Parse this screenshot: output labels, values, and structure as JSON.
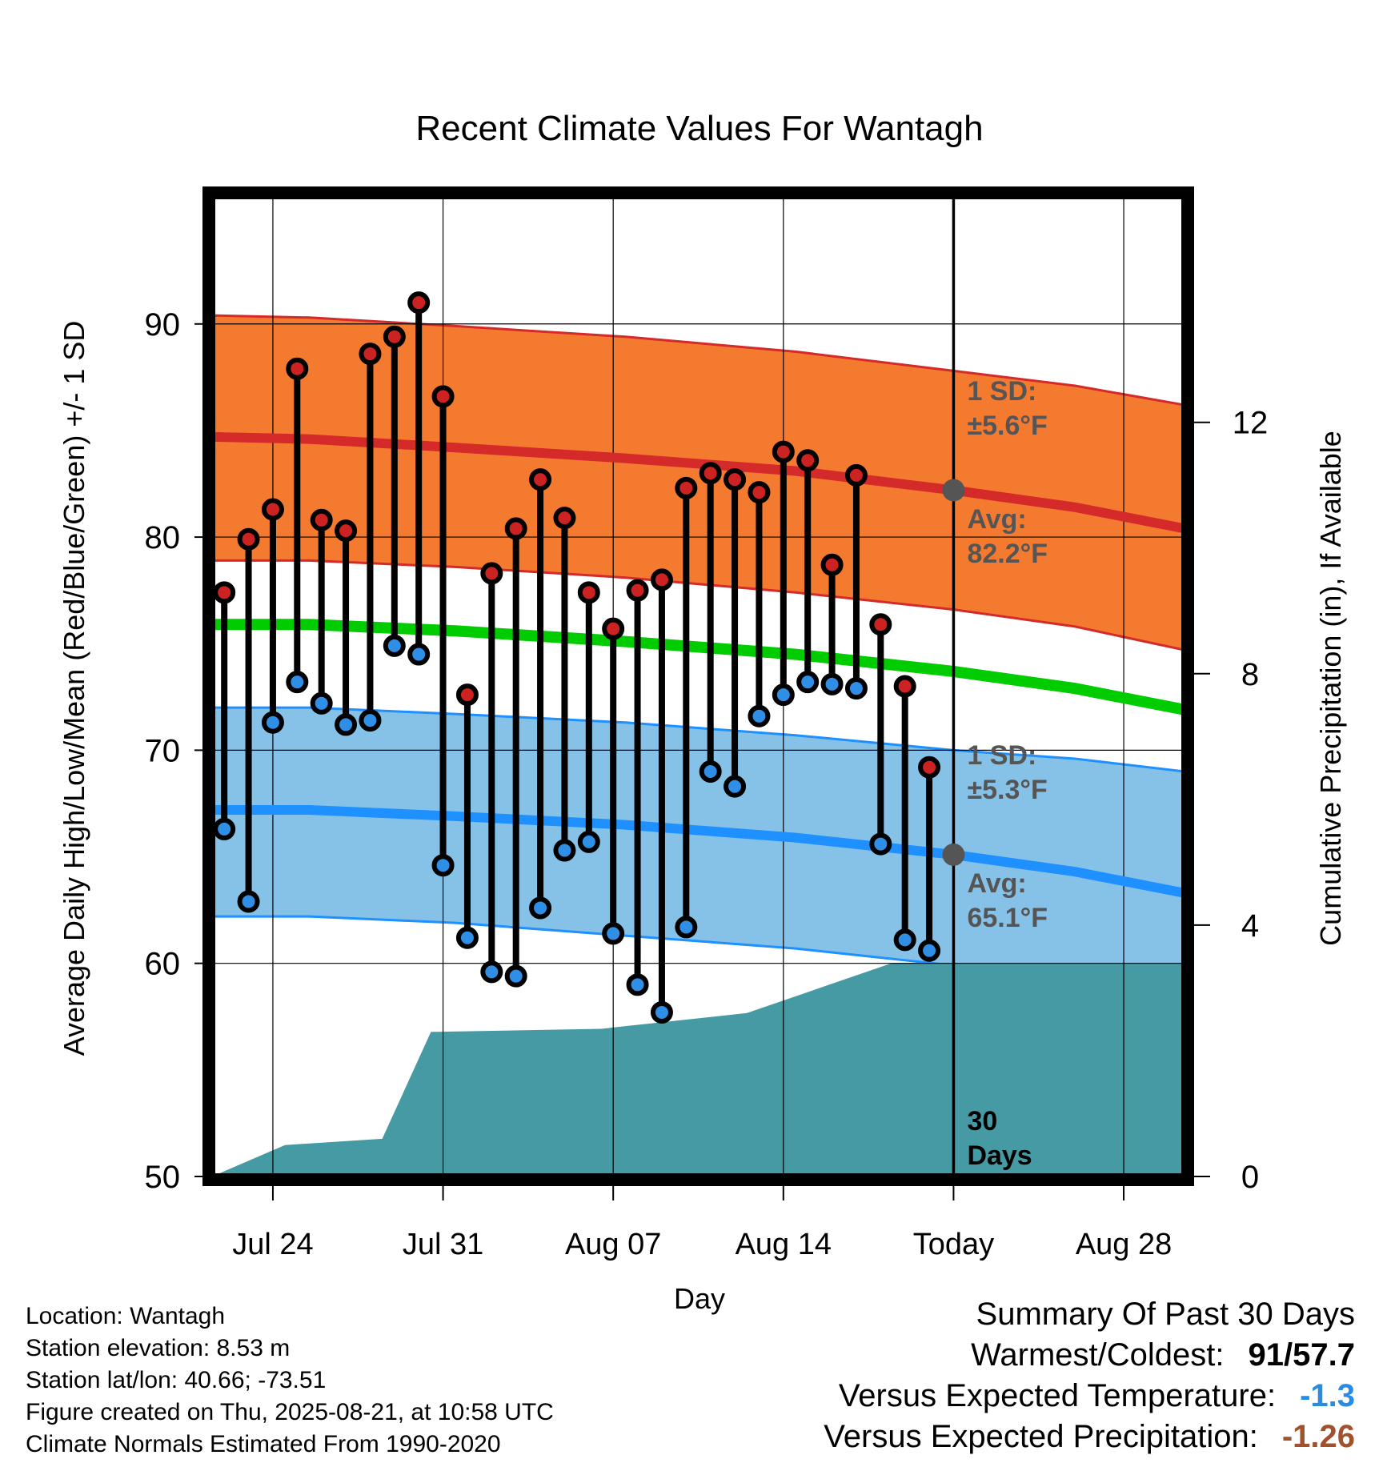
{
  "chart_data": {
    "type": "line",
    "title": "Recent Climate Values For Wantagh",
    "xlabel": "Day",
    "ylabel": "Average Daily High/Low/Mean (Red/Blue/Green) +/- 1 SD",
    "y2label": "Cumulative Precipitation (in), If Available",
    "x_tick_labels": [
      "Jul 24",
      "Jul 31",
      "Aug 07",
      "Aug 14",
      "Today",
      "Aug 28"
    ],
    "x_tick_days": [
      2,
      9,
      16,
      23,
      30,
      37
    ],
    "x_range_days": [
      -0.5,
      39.5
    ],
    "ylim": [
      50,
      96
    ],
    "yticks": [
      50,
      60,
      70,
      80,
      90
    ],
    "y2lim": [
      0,
      15.6
    ],
    "y2ticks": [
      0,
      4,
      8,
      12
    ],
    "today_day": 30,
    "days": [
      -0.5,
      3.5,
      9.5,
      16.5,
      23.5,
      30,
      35,
      39.5
    ],
    "normal_high": [
      84.7,
      84.6,
      84.2,
      83.7,
      83.1,
      82.2,
      81.4,
      80.4
    ],
    "normal_high_upper": [
      90.4,
      90.3,
      89.9,
      89.4,
      88.7,
      87.8,
      87.1,
      86.2
    ],
    "normal_high_lower": [
      78.9,
      78.9,
      78.6,
      78.1,
      77.4,
      76.6,
      75.8,
      74.7
    ],
    "normal_mean": [
      75.9,
      75.9,
      75.6,
      75.1,
      74.5,
      73.7,
      72.9,
      71.9
    ],
    "normal_low": [
      67.2,
      67.2,
      66.9,
      66.5,
      65.9,
      65.1,
      64.3,
      63.3
    ],
    "normal_low_upper": [
      72.0,
      72.0,
      71.7,
      71.3,
      70.7,
      70.0,
      69.6,
      69.0
    ],
    "normal_low_lower": [
      62.2,
      62.2,
      61.9,
      61.3,
      60.7,
      59.9,
      59.1,
      57.8
    ],
    "series": [
      {
        "name": "High",
        "values": [
          77.4,
          79.9,
          81.3,
          87.9,
          80.8,
          80.3,
          88.6,
          89.4,
          91.0,
          86.6,
          72.6,
          78.3,
          80.4,
          82.7,
          80.9,
          77.4,
          75.7,
          77.5,
          78.0,
          82.3,
          83.0,
          82.7,
          82.1,
          84.0,
          83.6,
          78.7,
          82.9,
          75.9,
          73.0,
          69.2
        ]
      },
      {
        "name": "Low",
        "values": [
          66.3,
          62.9,
          71.3,
          73.2,
          72.2,
          71.2,
          71.4,
          74.9,
          74.5,
          64.6,
          61.2,
          59.6,
          59.4,
          62.6,
          65.3,
          65.7,
          61.4,
          59.0,
          57.7,
          61.7,
          69.0,
          68.3,
          71.6,
          72.6,
          73.2,
          73.1,
          72.9,
          65.6,
          61.1,
          60.6
        ]
      }
    ],
    "obs_days": [
      0,
      1,
      2,
      3,
      4,
      5,
      6,
      7,
      8,
      9,
      10,
      11,
      12,
      13,
      14,
      15,
      16,
      17,
      18,
      19,
      20,
      21,
      22,
      23,
      24,
      25,
      26,
      27,
      28,
      29
    ],
    "precip_steps": [
      {
        "day": -0.5,
        "value": 0
      },
      {
        "day": 2.5,
        "value": 0.5
      },
      {
        "day": 6.5,
        "value": 0.6
      },
      {
        "day": 8.5,
        "value": 2.3
      },
      {
        "day": 15.5,
        "value": 2.35
      },
      {
        "day": 21.5,
        "value": 2.6
      },
      {
        "day": 27.5,
        "value": 3.4
      },
      {
        "day": 39.5,
        "value": 3.4
      }
    ],
    "annotations": {
      "high_sd_line1": "1 SD:",
      "high_sd_line2": "±5.6°F",
      "high_avg_line1": "Avg:",
      "high_avg_line2": "82.2°F",
      "low_sd_line1": "1 SD:",
      "low_sd_line2": "±5.3°F",
      "low_avg_line1": "Avg:",
      "low_avg_line2": "65.1°F",
      "window_line1": "30",
      "window_line2": "Days"
    },
    "colors": {
      "high_band": "#f47a30",
      "high_line": "#d42a2a",
      "mean_line": "#00cc00",
      "low_band": "#86c2e8",
      "low_line": "#1e90ff",
      "precip": "#469aa3",
      "marker_high": "#cc2222",
      "marker_low": "#2f8fe6"
    }
  },
  "footer": {
    "location": "Location: Wantagh",
    "elevation": "Station elevation: 8.53 m",
    "latlon": "Station lat/lon: 40.66; -73.51",
    "created": "Figure created on Thu, 2025-08-21, at 10:58 UTC",
    "normals": "Climate Normals Estimated From 1990-2020"
  },
  "summary": {
    "title": "Summary Of Past 30 Days",
    "warmest_label": "Warmest/Coldest:",
    "warmest": "91",
    "slash": "/",
    "coldest": "57.7",
    "temp_label": "Versus Expected Temperature:",
    "temp_value": "-1.3",
    "temp_color": "#2b8be0",
    "precip_label": "Versus Expected Precipitation:",
    "precip_value": "-1.26",
    "precip_color": "#a0522d"
  }
}
